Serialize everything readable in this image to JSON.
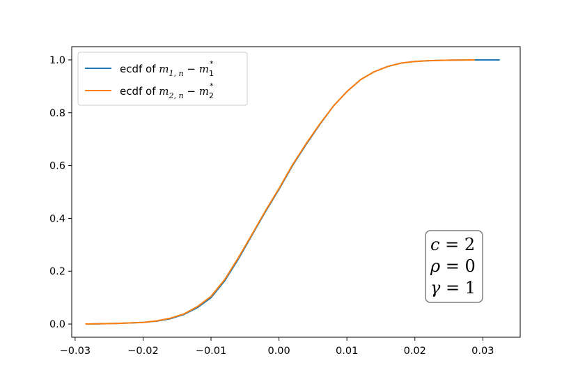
{
  "chart_data": {
    "type": "line",
    "title": "",
    "xlabel": "",
    "ylabel": "",
    "xlim": [
      -0.0305,
      0.0355
    ],
    "ylim": [
      -0.05,
      1.05
    ],
    "xticks": [
      -0.03,
      -0.02,
      -0.01,
      0.0,
      0.01,
      0.02,
      0.03
    ],
    "xtick_labels": [
      "−0.03",
      "−0.02",
      "−0.01",
      "0.00",
      "0.01",
      "0.02",
      "0.03"
    ],
    "yticks": [
      0.0,
      0.2,
      0.4,
      0.6,
      0.8,
      1.0
    ],
    "ytick_labels": [
      "0.0",
      "0.2",
      "0.4",
      "0.6",
      "0.8",
      "1.0"
    ],
    "grid": false,
    "legend_position": "top-left",
    "series": [
      {
        "name": "ecdf of m_{1,n} − m_1^*",
        "legend_parts": {
          "prefix": "ecdf of ",
          "v1": "m",
          "s1": "1, n",
          "mid": " − ",
          "v2": "m",
          "sub2": "1",
          "sup2": "*"
        },
        "color": "#1f77b4",
        "x": [
          -0.0285,
          -0.024,
          -0.02,
          -0.018,
          -0.016,
          -0.014,
          -0.012,
          -0.01,
          -0.008,
          -0.006,
          -0.004,
          -0.002,
          0.0,
          0.002,
          0.004,
          0.006,
          0.008,
          0.01,
          0.012,
          0.014,
          0.016,
          0.018,
          0.02,
          0.022,
          0.025,
          0.0285,
          0.0325
        ],
        "y": [
          0.0,
          0.002,
          0.006,
          0.011,
          0.02,
          0.036,
          0.062,
          0.1,
          0.163,
          0.245,
          0.335,
          0.425,
          0.51,
          0.6,
          0.68,
          0.755,
          0.825,
          0.88,
          0.925,
          0.955,
          0.975,
          0.988,
          0.994,
          0.997,
          0.999,
          1.0,
          1.0
        ]
      },
      {
        "name": "ecdf of m_{2,n} − m_2^*",
        "legend_parts": {
          "prefix": "ecdf of ",
          "v1": "m",
          "s1": "2, n",
          "mid": " − ",
          "v2": "m",
          "sub2": "2",
          "sup2": "*"
        },
        "color": "#ff7f0e",
        "x": [
          -0.0285,
          -0.024,
          -0.02,
          -0.018,
          -0.016,
          -0.014,
          -0.012,
          -0.01,
          -0.008,
          -0.006,
          -0.004,
          -0.002,
          0.0,
          0.002,
          0.004,
          0.006,
          0.008,
          0.01,
          0.012,
          0.014,
          0.016,
          0.018,
          0.02,
          0.022,
          0.025,
          0.0288
        ],
        "y": [
          0.0,
          0.002,
          0.006,
          0.012,
          0.022,
          0.038,
          0.066,
          0.105,
          0.168,
          0.25,
          0.338,
          0.428,
          0.513,
          0.603,
          0.683,
          0.757,
          0.825,
          0.88,
          0.925,
          0.955,
          0.975,
          0.988,
          0.994,
          0.997,
          0.999,
          1.0
        ]
      }
    ],
    "annotation": {
      "lines": [
        {
          "var": "c",
          "op": " = ",
          "val": "2"
        },
        {
          "var": "ρ",
          "op": " = ",
          "val": "0"
        },
        {
          "var": "γ",
          "op": " = ",
          "val": "1"
        }
      ]
    }
  }
}
